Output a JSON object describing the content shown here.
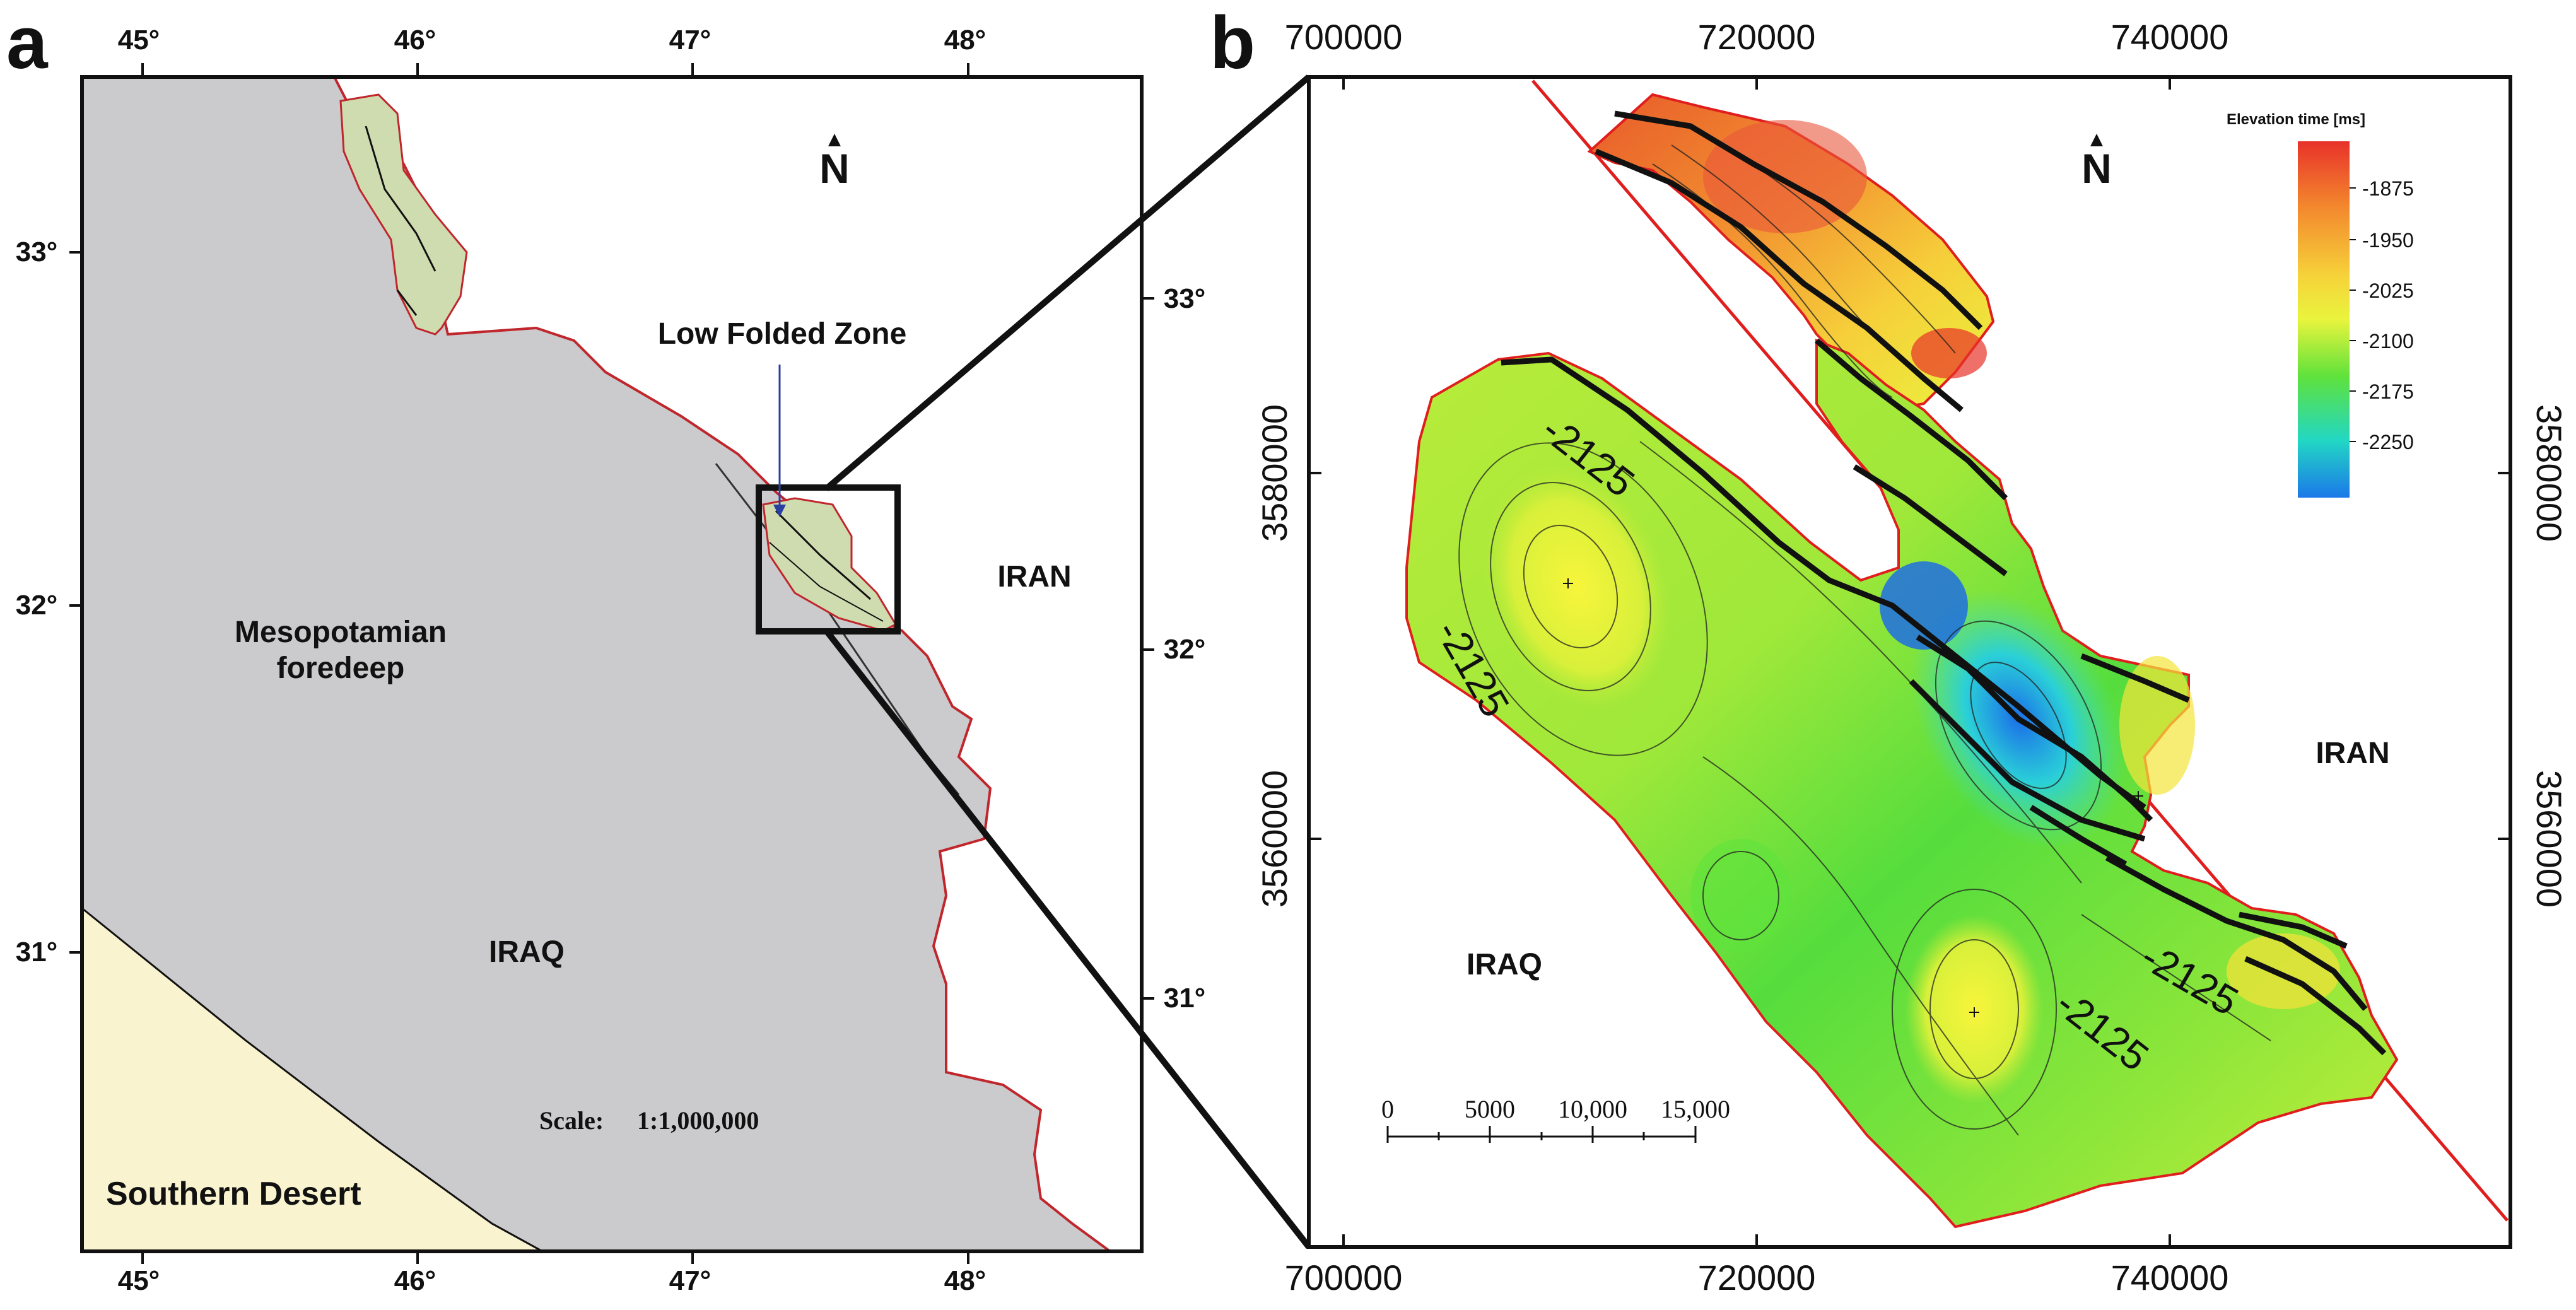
{
  "panel_a": {
    "letter": "a",
    "top_ticks": [
      "45°",
      "46°",
      "47°",
      "48°"
    ],
    "bottom_ticks": [
      "45°",
      "46°",
      "47°",
      "48°"
    ],
    "left_ticks": [
      "33°",
      "32°",
      "31°"
    ],
    "right_ticks": [
      "33°",
      "32°",
      "31°"
    ],
    "north": "N",
    "labels": {
      "low_folded_zone": "Low Folded Zone",
      "iran": "IRAN",
      "mesopotamian": "Mesopotamian",
      "foredeep": "foredeep",
      "iraq": "IRAQ",
      "scale_label": "Scale:",
      "scale_value": "1:1,000,000",
      "southern_desert": "Southern Desert"
    },
    "colors": {
      "iraq_fill": "#cbcbcd",
      "desert_fill": "#faf3cf",
      "fold_fill": "#cfdcb0",
      "border": "#c0262c"
    }
  },
  "panel_b": {
    "letter": "b",
    "top_ticks": [
      "700000",
      "720000",
      "740000"
    ],
    "bottom_ticks": [
      "700000",
      "720000",
      "740000"
    ],
    "left_ticks": [
      "3580000",
      "3560000"
    ],
    "right_ticks": [
      "3580000",
      "3560000"
    ],
    "north": "N",
    "labels": {
      "iran": "IRAN",
      "iraq": "IRAQ"
    },
    "contour_labels": [
      "-2125",
      "-2125",
      "-2125",
      "-2125"
    ],
    "scale_bar": [
      "0",
      "5000",
      "10,000",
      "15,000"
    ],
    "legend": {
      "title": "Elevation time [ms]",
      "ticks": [
        "-1875",
        "-1950",
        "-2025",
        "-2100",
        "-2175",
        "-2250"
      ],
      "colors": [
        "#e8322a",
        "#f3862d",
        "#f6d33a",
        "#e9f43d",
        "#5fe23c",
        "#22d7c4",
        "#1b78e8"
      ]
    }
  }
}
